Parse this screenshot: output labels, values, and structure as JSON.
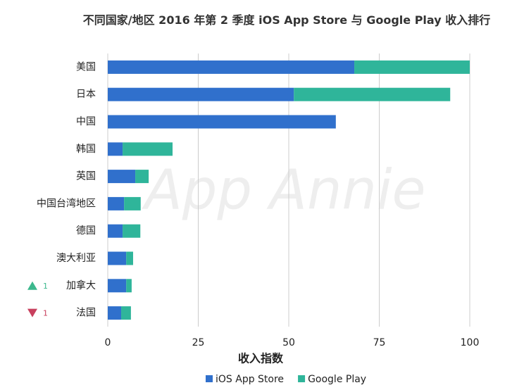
{
  "chart_data": {
    "type": "stacked-barh",
    "title": "不同国家/地区 2016 年第 2 季度 iOS App Store 与 Google Play 收入排行",
    "xlabel": "收入指数",
    "watermark": "App Annie",
    "categories": [
      "美国",
      "日本",
      "中国",
      "韩国",
      "英国",
      "中国台湾地区",
      "德国",
      "澳大利亚",
      "加拿大",
      "法国"
    ],
    "series": [
      {
        "name": "iOS App Store",
        "color": "#3070cc",
        "values": [
          68.1,
          51.4,
          63,
          4.1,
          7.6,
          4.5,
          4.1,
          5.1,
          5.1,
          3.7
        ]
      },
      {
        "name": "Google Play",
        "color": "#2fb59a",
        "values": [
          31.9,
          43.2,
          0,
          13.8,
          3.7,
          4.6,
          4.9,
          1.9,
          1.5,
          2.7
        ]
      }
    ],
    "rank_changes": [
      null,
      null,
      null,
      null,
      null,
      null,
      null,
      null,
      {
        "value": 1,
        "direction": "up",
        "color": "#3cb88d"
      },
      {
        "value": 1,
        "direction": "down",
        "color": "#c8405e"
      }
    ],
    "xlim": [
      0,
      100
    ],
    "xticks": [
      0,
      25,
      50,
      75,
      100
    ],
    "grid": true,
    "legend": "bottom"
  }
}
